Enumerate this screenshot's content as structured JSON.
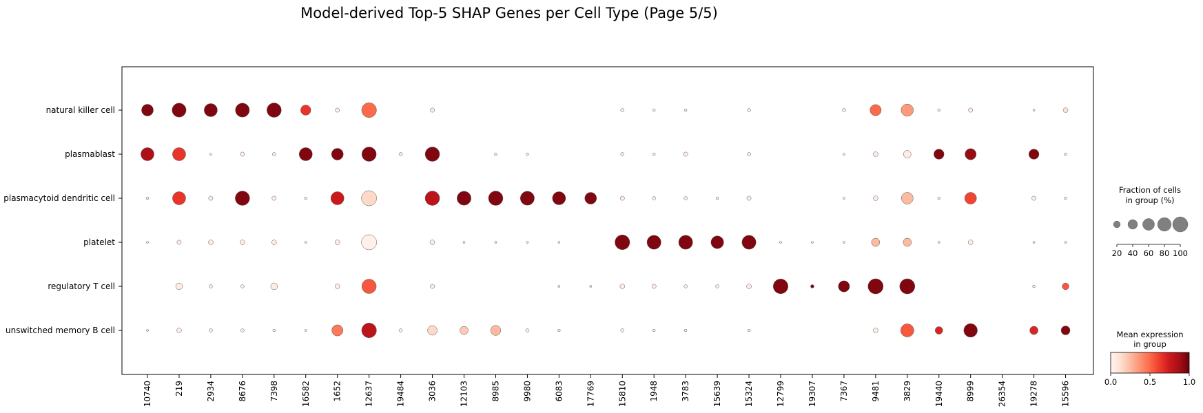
{
  "chart_data": {
    "type": "scatter",
    "title": "Model-derived Top-5 SHAP Genes per Cell Type (Page 5/5)",
    "x_categories": [
      "10740",
      "219",
      "2934",
      "8676",
      "7398",
      "16582",
      "1652",
      "12637",
      "19484",
      "3036",
      "12103",
      "8985",
      "9980",
      "6083",
      "17769",
      "15810",
      "1948",
      "3783",
      "15639",
      "15324",
      "12799",
      "19307",
      "7367",
      "9481",
      "3829",
      "19440",
      "8999",
      "26354",
      "19278",
      "15596"
    ],
    "y_categories": [
      "natural killer cell",
      "plasmablast",
      "plasmacytoid dendritic cell",
      "platelet",
      "regulatory T cell",
      "unswitched memory B cell"
    ],
    "fraction": [
      [
        60,
        85,
        75,
        85,
        90,
        45,
        8,
        95,
        0,
        8,
        0,
        0,
        0,
        0,
        0,
        5,
        3,
        3,
        0,
        5,
        0,
        0,
        5,
        55,
        65,
        3,
        8,
        0,
        2,
        10
      ],
      [
        75,
        75,
        2,
        8,
        5,
        75,
        60,
        90,
        5,
        90,
        0,
        3,
        3,
        0,
        0,
        5,
        3,
        8,
        0,
        5,
        0,
        0,
        2,
        10,
        25,
        45,
        55,
        0,
        45,
        3
      ],
      [
        3,
        75,
        8,
        90,
        8,
        3,
        75,
        100,
        0,
        90,
        85,
        90,
        85,
        75,
        60,
        8,
        5,
        5,
        3,
        8,
        0,
        0,
        2,
        10,
        60,
        3,
        60,
        0,
        8,
        3
      ],
      [
        2,
        8,
        10,
        10,
        10,
        2,
        10,
        100,
        0,
        10,
        2,
        2,
        2,
        2,
        0,
        95,
        85,
        85,
        70,
        85,
        2,
        2,
        2,
        30,
        30,
        2,
        10,
        0,
        2,
        2
      ],
      [
        0,
        20,
        5,
        5,
        20,
        0,
        10,
        90,
        0,
        8,
        0,
        0,
        0,
        2,
        2,
        10,
        8,
        5,
        5,
        10,
        95,
        5,
        55,
        100,
        100,
        0,
        0,
        0,
        3,
        20
      ],
      [
        2,
        10,
        5,
        5,
        3,
        2,
        55,
        95,
        5,
        40,
        30,
        45,
        5,
        3,
        0,
        5,
        3,
        3,
        0,
        3,
        0,
        0,
        0,
        10,
        75,
        25,
        80,
        0,
        30,
        35
      ]
    ],
    "expression": [
      [
        0.95,
        0.95,
        0.95,
        0.95,
        0.95,
        0.65,
        0.05,
        0.5,
        0,
        0.05,
        0,
        0,
        0,
        0,
        0,
        0.05,
        0.05,
        0.05,
        0,
        0.05,
        0,
        0,
        0.05,
        0.5,
        0.35,
        0.05,
        0.05,
        0,
        0.05,
        0.1
      ],
      [
        0.85,
        0.65,
        0.05,
        0.05,
        0.05,
        0.95,
        0.95,
        0.95,
        0.05,
        0.95,
        0,
        0.05,
        0.05,
        0,
        0,
        0.05,
        0.05,
        0.05,
        0,
        0.05,
        0,
        0,
        0.05,
        0.05,
        0.05,
        0.95,
        0.9,
        0,
        0.95,
        0.05
      ],
      [
        0.05,
        0.65,
        0.05,
        0.95,
        0.05,
        0.05,
        0.75,
        0.15,
        0,
        0.8,
        0.95,
        0.95,
        0.95,
        0.95,
        0.95,
        0.05,
        0.05,
        0.05,
        0.05,
        0.05,
        0,
        0,
        0.05,
        0.05,
        0.25,
        0.05,
        0.6,
        0,
        0.05,
        0.05
      ],
      [
        0.05,
        0.05,
        0.05,
        0.05,
        0.05,
        0.05,
        0.05,
        0.03,
        0,
        0.05,
        0.05,
        0.05,
        0.05,
        0.05,
        0,
        0.95,
        0.95,
        0.95,
        0.95,
        0.95,
        0.05,
        0.05,
        0.05,
        0.25,
        0.25,
        0.05,
        0.05,
        0,
        0.05,
        0.05
      ],
      [
        0,
        0.05,
        0.05,
        0.05,
        0.05,
        0,
        0.05,
        0.55,
        0,
        0.05,
        0,
        0,
        0,
        0.05,
        0.05,
        0.05,
        0.05,
        0.05,
        0.05,
        0.05,
        0.95,
        0.95,
        0.95,
        0.95,
        0.95,
        0,
        0,
        0,
        0.05,
        0.55
      ],
      [
        0.05,
        0.05,
        0.05,
        0.05,
        0.05,
        0.05,
        0.45,
        0.8,
        0.05,
        0.15,
        0.2,
        0.25,
        0.05,
        0.05,
        0,
        0.05,
        0.05,
        0.05,
        0,
        0.05,
        0,
        0,
        0,
        0.05,
        0.55,
        0.7,
        0.95,
        0,
        0.7,
        0.95
      ]
    ],
    "legend": {
      "size_title_line1": "Fraction of cells",
      "size_title_line2": "in group (%)",
      "size_ticks": [
        20,
        40,
        60,
        80,
        100
      ],
      "color_title_line1": "Mean expression",
      "color_title_line2": "in group",
      "color_ticks": [
        "0.0",
        "0.5",
        "1.0"
      ],
      "colormap": "Reds",
      "color_range": [
        0,
        1
      ]
    },
    "colors": {
      "reds_stops": [
        "#fff5f0",
        "#fee0d2",
        "#fcbba1",
        "#fc9272",
        "#fb6a4a",
        "#ef3b2c",
        "#cb181d",
        "#a50f15",
        "#67000d"
      ],
      "dot_edge": "#555555"
    },
    "legend_position": "right",
    "grid": false
  }
}
